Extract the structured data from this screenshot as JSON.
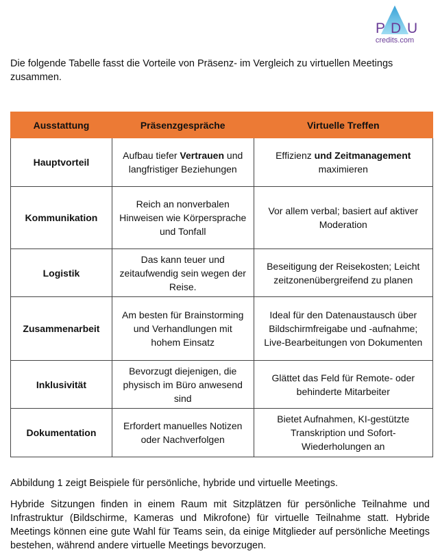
{
  "logo": {
    "letters": [
      "P",
      "D",
      "U"
    ],
    "site": "credits.com"
  },
  "intro": "Die folgende Tabelle fasst die Vorteile von Präsenz- im Vergleich zu virtuellen Meetings zusammen.",
  "table": {
    "header": [
      "Ausstattung",
      "Präsenzgespräche",
      "Virtuelle Treffen"
    ],
    "rows": [
      [
        "Hauptvorteil",
        [
          "Aufbau tiefer ",
          "Vertrauen",
          " und langfristiger Beziehungen"
        ],
        [
          "Effizienz ",
          "und Zeitmanagement",
          " maximieren"
        ]
      ],
      [
        "Kommunikation",
        "Reich an nonverbalen Hinweisen wie Körpersprache und Tonfall",
        "Vor allem verbal; basiert auf aktiver Moderation"
      ],
      [
        "Logistik",
        "Das kann teuer und zeitaufwendig sein wegen der Reise.",
        "Beseitigung der Reisekosten; Leicht zeitzonenübergreifend zu planen"
      ],
      [
        "Zusammenarbeit",
        "Am besten für Brainstorming und Verhandlungen mit hohem Einsatz",
        "Ideal für den Datenaustausch über Bildschirmfreigabe und -aufnahme; Live-Bearbeitungen von Dokumenten"
      ],
      [
        "Inklusivität",
        "Bevorzugt diejenigen, die physisch im Büro anwesend sind",
        "Glättet das Feld für Remote- oder behinderte Mitarbeiter"
      ],
      [
        "Dokumentation",
        "Erfordert manuelles Notizen oder Nachverfolgen",
        "Bietet Aufnahmen, KI-gestützte Transkription und Sofort-Wiederholungen an"
      ]
    ]
  },
  "paragraphs": [
    "Abbildung 1 zeigt Beispiele für persönliche, hybride und virtuelle Meetings.",
    "Hybride Sitzungen finden in einem Raum mit Sitzplätzen für persönliche Teilnahme und Infrastruktur (Bildschirme, Kameras und Mikrofone) für virtuelle Teilnahme statt. Hybride Meetings können eine gute Wahl für Teams sein, da einige Mitglieder auf persönliche Meetings bestehen, während andere virtuelle Meetings bevorzugen."
  ]
}
